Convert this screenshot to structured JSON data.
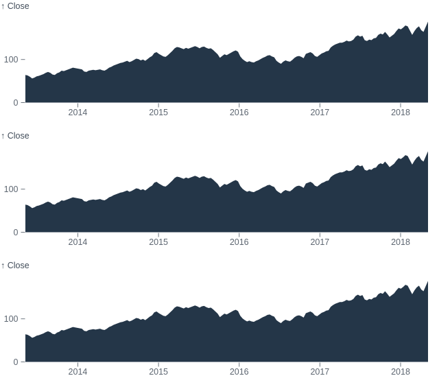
{
  "page": {
    "background": "#ffffff"
  },
  "chart_data": {
    "type": "area",
    "panels": 3,
    "title": "↑ Close",
    "ylabel": "Close",
    "xlabel": "",
    "grid": false,
    "legend": false,
    "x_domain": [
      2013.35,
      2018.34
    ],
    "x_ticks": [
      2014,
      2015,
      2016,
      2017,
      2018
    ],
    "y_ticks": [
      0,
      100
    ],
    "y_domain": [
      0,
      206
    ],
    "colors": {
      "fill": "#243648",
      "title_text": "#414c59",
      "tick_text": "#5d6671",
      "tick_mark": "#6e7780"
    },
    "values": [
      64,
      63,
      60,
      56,
      58,
      61,
      62,
      64,
      66,
      69,
      71,
      69,
      65,
      64,
      68,
      70,
      74,
      73,
      75,
      77,
      79,
      81,
      80,
      79,
      78,
      77,
      72,
      71,
      74,
      75,
      76,
      75,
      76,
      77,
      75,
      74,
      77,
      81,
      83,
      86,
      88,
      90,
      92,
      93,
      95,
      97,
      94,
      96,
      99,
      102,
      101,
      98,
      100,
      97,
      101,
      105,
      108,
      115,
      117,
      113,
      110,
      107,
      106,
      110,
      115,
      120,
      126,
      129,
      128,
      126,
      124,
      127,
      125,
      127,
      129,
      131,
      129,
      126,
      129,
      130,
      127,
      125,
      126,
      122,
      117,
      112,
      104,
      108,
      112,
      110,
      113,
      116,
      119,
      121,
      118,
      107,
      101,
      97,
      94,
      96,
      94,
      93,
      96,
      98,
      101,
      104,
      106,
      109,
      110,
      107,
      105,
      97,
      93,
      90,
      95,
      98,
      96,
      95,
      99,
      104,
      107,
      108,
      106,
      103,
      113,
      115,
      117,
      114,
      108,
      106,
      110,
      114,
      116,
      119,
      120,
      128,
      132,
      135,
      137,
      139,
      139,
      141,
      144,
      142,
      143,
      146,
      153,
      156,
      153,
      155,
      145,
      143,
      146,
      145,
      149,
      150,
      157,
      160,
      158,
      164,
      158,
      151,
      155,
      159,
      166,
      172,
      170,
      174,
      179,
      177,
      167,
      157,
      166,
      173,
      177,
      168,
      164,
      176,
      188
    ]
  }
}
